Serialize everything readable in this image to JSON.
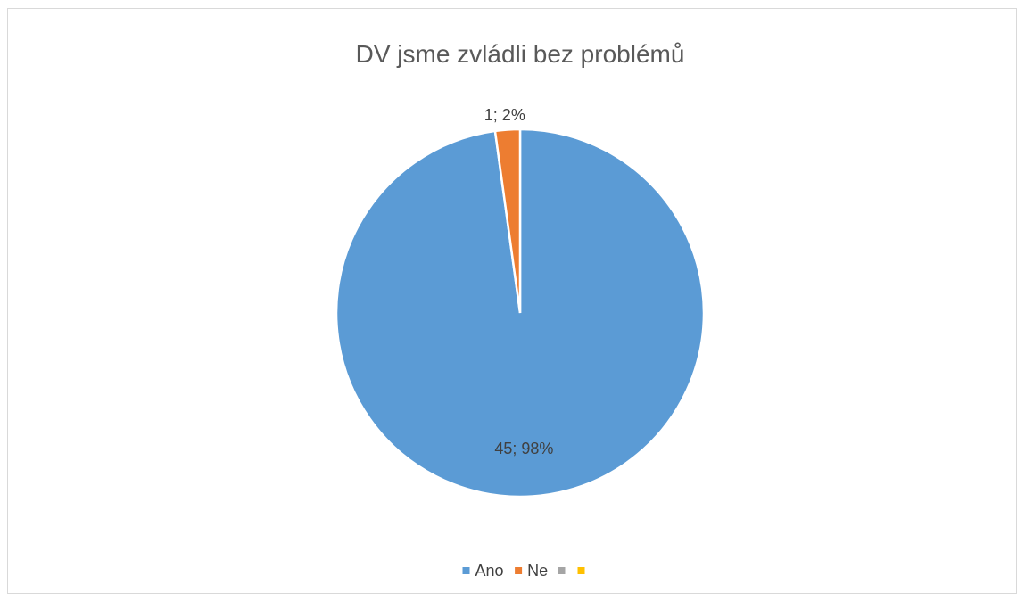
{
  "chart_data": {
    "type": "pie",
    "title": "DV jsme zvládli bez problémů",
    "slices": [
      {
        "label": "Ano",
        "value": 45,
        "percent": 98,
        "color": "#5b9bd5",
        "data_label": "45; 98%"
      },
      {
        "label": "Ne",
        "value": 1,
        "percent": 2,
        "color": "#ed7d31",
        "data_label": "1; 2%"
      },
      {
        "label": "",
        "value": 0,
        "percent": 0,
        "color": "#a5a5a5",
        "data_label": ""
      },
      {
        "label": "",
        "value": 0,
        "percent": 0,
        "color": "#ffc000",
        "data_label": ""
      }
    ],
    "legend_position": "bottom"
  }
}
